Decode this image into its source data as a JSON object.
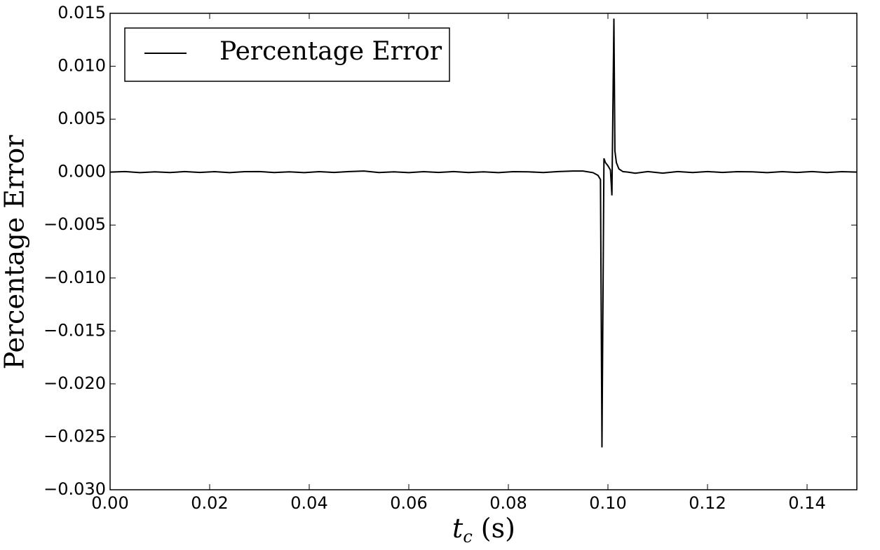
{
  "chart_data": {
    "type": "line",
    "y_label": "Percentage Error",
    "x_label": {
      "main": "t",
      "sub": "c",
      "unit": "(s)"
    },
    "x": [
      0,
      0.003,
      0.006,
      0.009,
      0.012,
      0.015,
      0.018,
      0.021,
      0.024,
      0.027,
      0.03,
      0.033,
      0.036,
      0.039,
      0.042,
      0.045,
      0.048,
      0.051,
      0.054,
      0.057,
      0.06,
      0.063,
      0.066,
      0.069,
      0.072,
      0.075,
      0.078,
      0.081,
      0.084,
      0.087,
      0.09,
      0.093,
      0.095,
      0.097,
      0.098,
      0.0985,
      0.0988,
      0.0992,
      0.0995,
      0.1,
      0.1005,
      0.1008,
      0.1012,
      0.1014,
      0.1017,
      0.1022,
      0.103,
      0.104,
      0.1055,
      0.108,
      0.111,
      0.114,
      0.117,
      0.12,
      0.123,
      0.126,
      0.129,
      0.132,
      0.135,
      0.138,
      0.141,
      0.144,
      0.147,
      0.15
    ],
    "series": [
      {
        "name": "Percentage Error",
        "color": "#000000",
        "values": [
          0,
          5e-05,
          -5e-05,
          3e-05,
          -4e-05,
          5e-05,
          -3e-05,
          4e-05,
          -5e-05,
          4e-05,
          5e-05,
          -4e-05,
          3e-05,
          -5e-05,
          4e-05,
          -3e-05,
          5e-05,
          0.0001,
          -4e-05,
          3e-05,
          -5e-05,
          4e-05,
          -3e-05,
          5e-05,
          -4e-05,
          3e-05,
          -5e-05,
          4e-05,
          3e-05,
          -4e-05,
          5e-05,
          0.0001,
          0.0001,
          -5e-05,
          -0.0003,
          -0.0007,
          -0.026,
          0.0013,
          0.0009,
          0.0006,
          0.0002,
          -0.0022,
          0.0145,
          0.002,
          0.0009,
          0.0003,
          5e-05,
          0,
          -0.0001,
          5e-05,
          -0.0001,
          5e-05,
          -4e-05,
          5e-05,
          -3e-05,
          4e-05,
          3e-05,
          -5e-05,
          4e-05,
          -3e-05,
          5e-05,
          -4e-05,
          4e-05,
          0
        ]
      }
    ],
    "xlim": [
      0,
      0.15
    ],
    "ylim": [
      -0.03,
      0.015
    ],
    "xticks": [
      {
        "value": 0,
        "label": "0.00"
      },
      {
        "value": 0.02,
        "label": "0.02"
      },
      {
        "value": 0.04,
        "label": "0.04"
      },
      {
        "value": 0.06,
        "label": "0.06"
      },
      {
        "value": 0.08,
        "label": "0.08"
      },
      {
        "value": 0.1,
        "label": "0.10"
      },
      {
        "value": 0.12,
        "label": "0.12"
      },
      {
        "value": 0.14,
        "label": "0.14"
      }
    ],
    "yticks": [
      {
        "value": -0.03,
        "label": "−0.030"
      },
      {
        "value": -0.025,
        "label": "−0.025"
      },
      {
        "value": -0.02,
        "label": "−0.020"
      },
      {
        "value": -0.015,
        "label": "−0.015"
      },
      {
        "value": -0.01,
        "label": "−0.010"
      },
      {
        "value": -0.005,
        "label": "−0.005"
      },
      {
        "value": 0,
        "label": "0.000"
      },
      0.005,
      {
        "value": 0.01,
        "label": "0.010"
      },
      0.015
    ],
    "grid": false,
    "legend": "upper left"
  }
}
